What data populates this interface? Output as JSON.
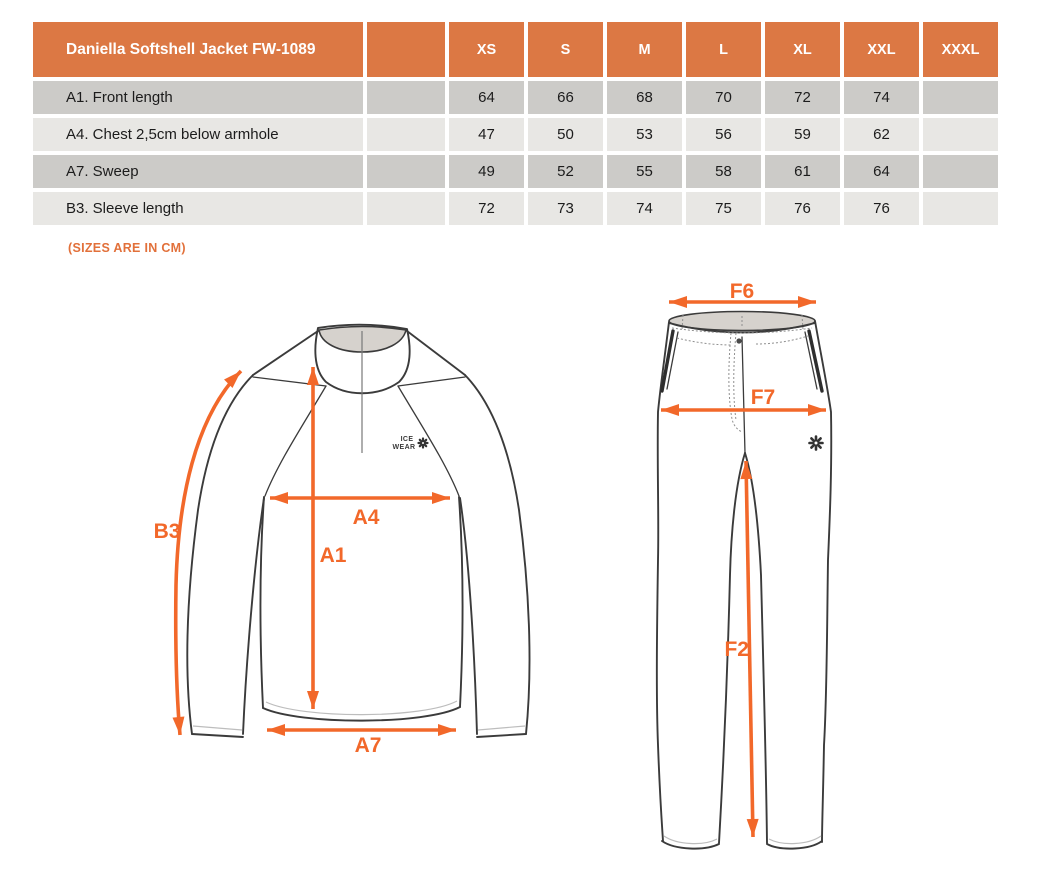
{
  "table": {
    "title": "Daniella Softshell Jacket FW-1089",
    "sizes": [
      "XS",
      "S",
      "M",
      "L",
      "XL",
      "XXL",
      "XXXL"
    ],
    "rows": [
      {
        "label": "A1. Front length",
        "values": [
          "64",
          "66",
          "68",
          "70",
          "72",
          "74",
          ""
        ]
      },
      {
        "label": "A4. Chest 2,5cm below armhole",
        "values": [
          "47",
          "50",
          "53",
          "56",
          "59",
          "62",
          ""
        ]
      },
      {
        "label": "A7. Sweep",
        "values": [
          "49",
          "52",
          "55",
          "58",
          "61",
          "64",
          ""
        ]
      },
      {
        "label": "B3. Sleeve length",
        "values": [
          "72",
          "73",
          "74",
          "75",
          "76",
          "76",
          ""
        ]
      }
    ]
  },
  "note": "(SIZES ARE IN CM)",
  "jacket": {
    "labels": {
      "b3": "B3",
      "a4": "A4",
      "a1": "A1",
      "a7": "A7"
    },
    "logo": {
      "line1": "ICE",
      "line2": "WEAR"
    }
  },
  "pants": {
    "labels": {
      "f6": "F6",
      "f7": "F7",
      "f2": "F2"
    }
  },
  "colors": {
    "header_orange": "#DC7844",
    "arrow_orange": "#F2682A",
    "note_orange": "#E2703A",
    "row_dark": "#CCCBC8",
    "row_light": "#E8E7E4",
    "collar_gray": "#D6D2CD",
    "outline_dark": "#3B3B3B"
  }
}
